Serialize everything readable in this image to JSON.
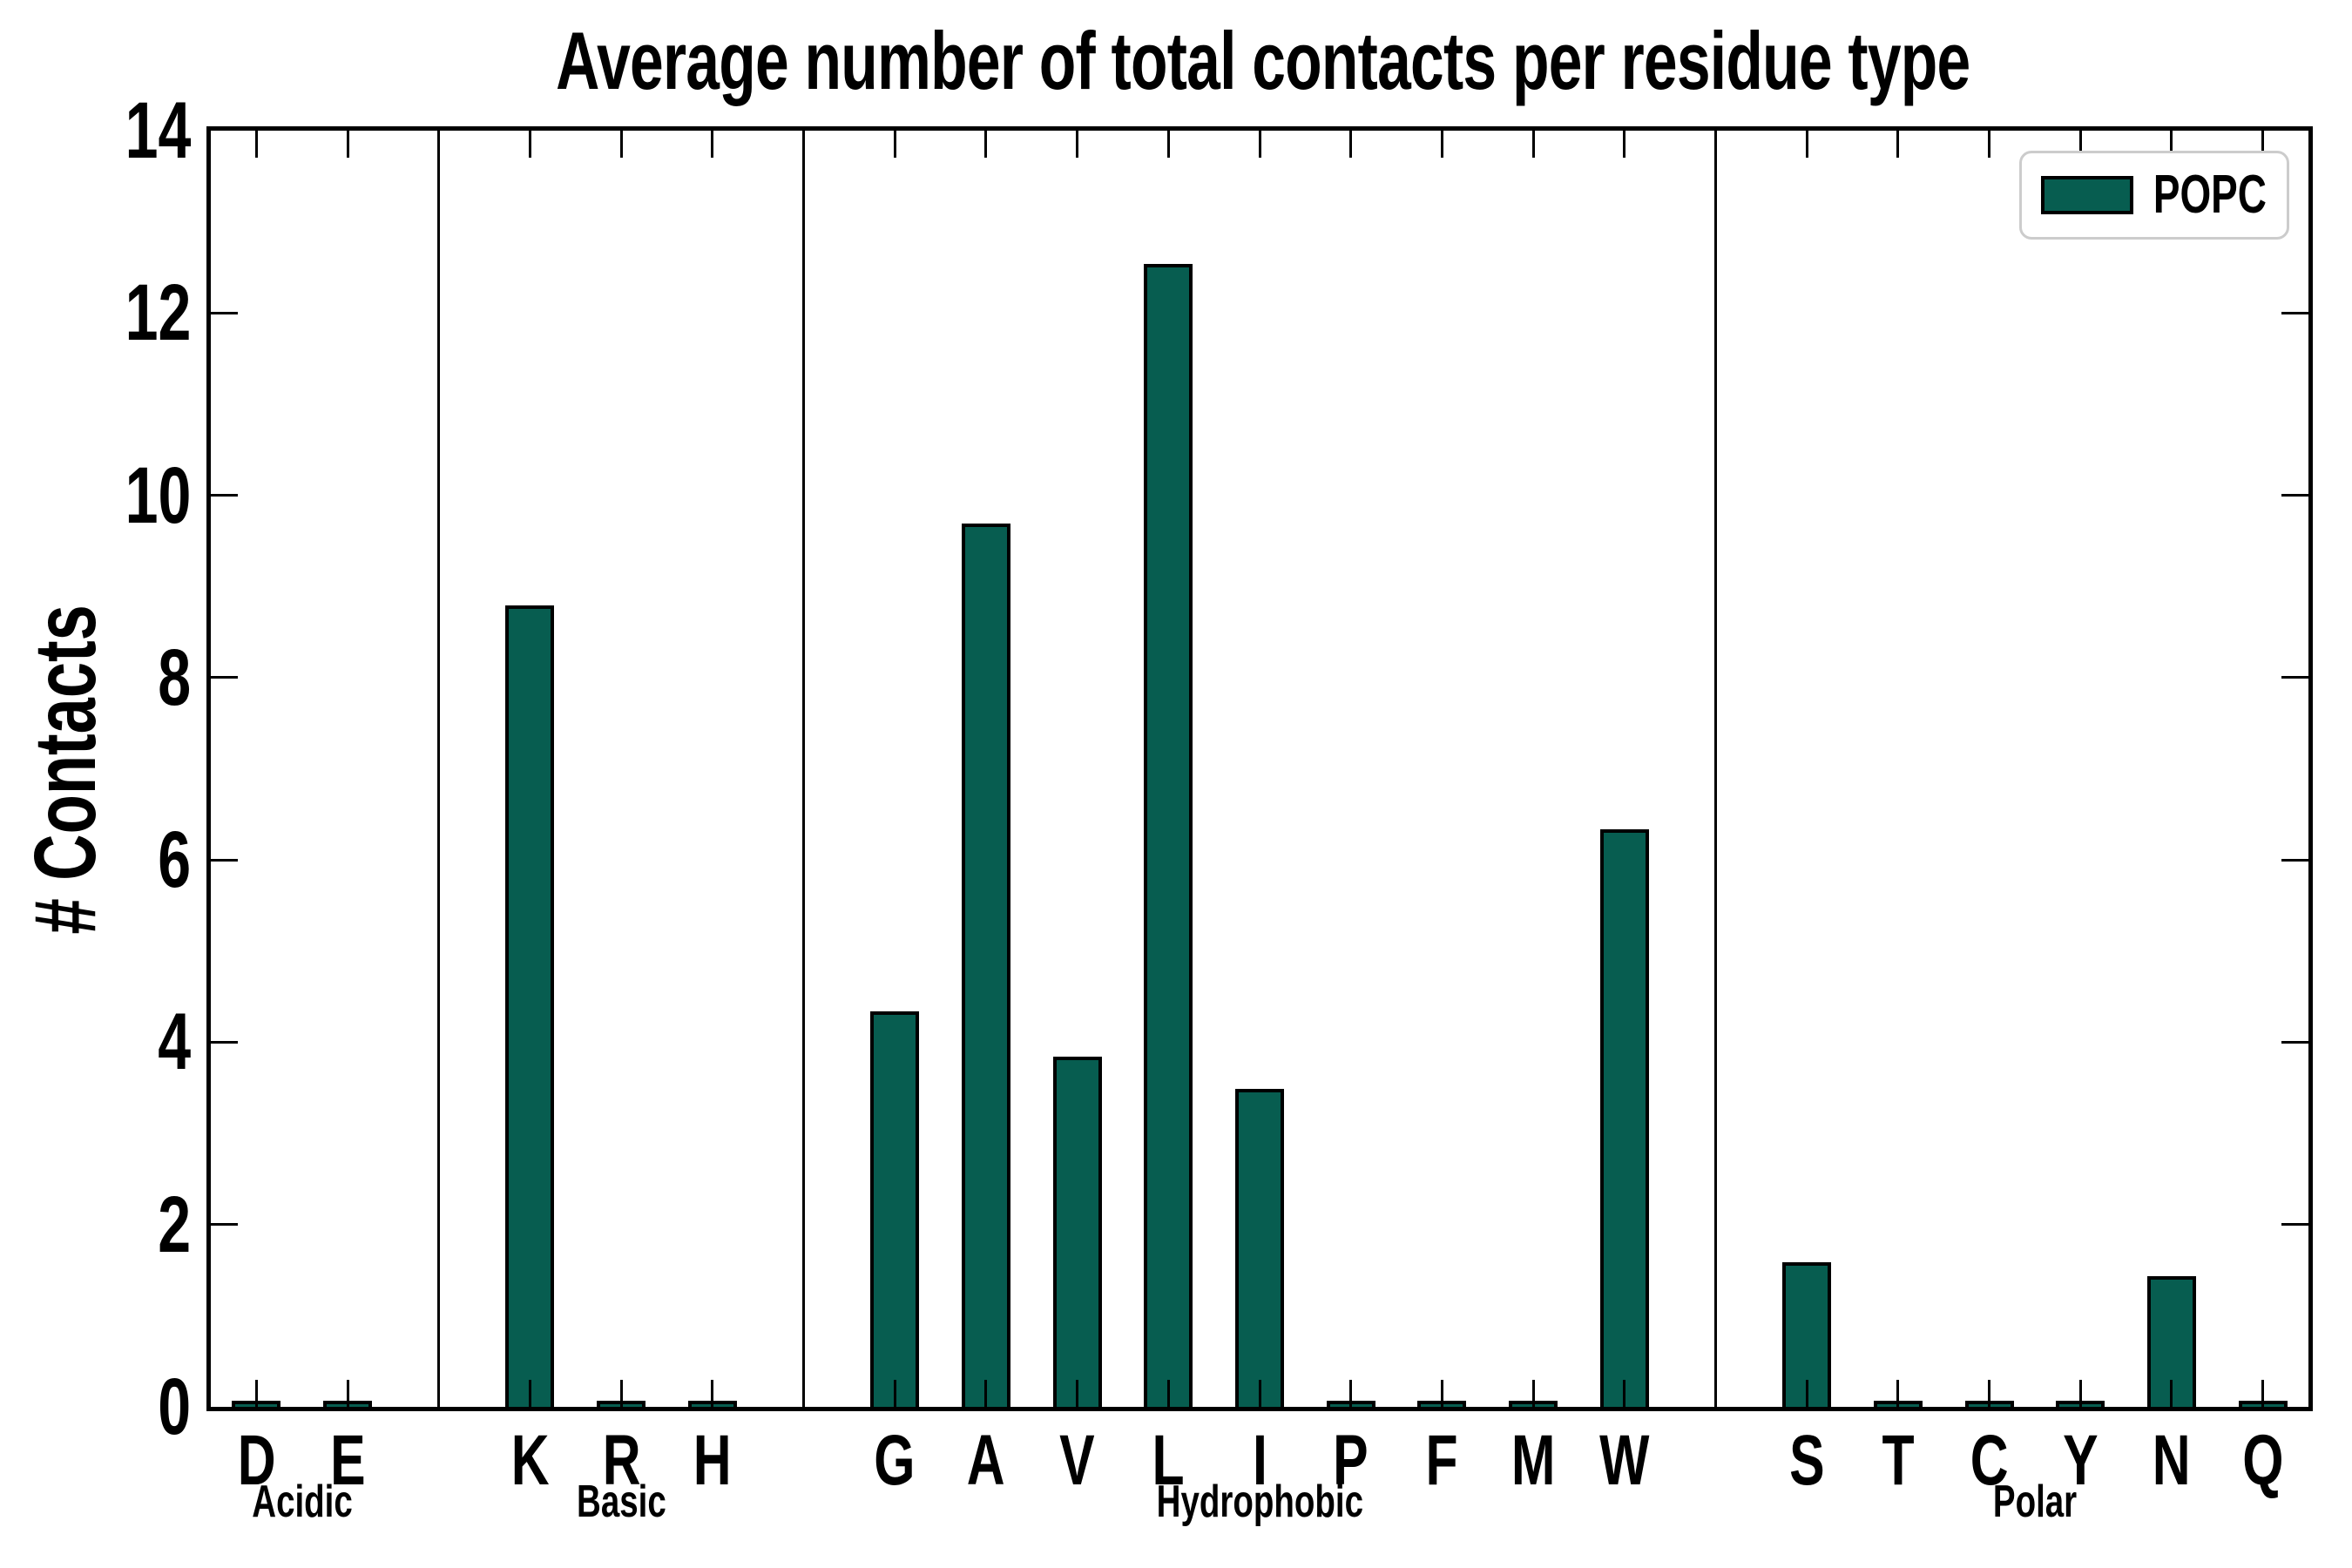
{
  "title": "Average number of total contacts per residue type",
  "y_axis_label": "# Contacts",
  "legend": {
    "label": "POPC"
  },
  "colors": {
    "bar_fill": "#075d50",
    "bar_edge": "#000000",
    "axis": "#000000",
    "legend_border": "#cccccc",
    "background": "#ffffff"
  },
  "chart_data": {
    "type": "bar",
    "title": "Average number of total contacts per residue type",
    "xlabel": "",
    "ylabel": "# Contacts",
    "ylim": [
      0,
      14
    ],
    "yticks": [
      0,
      2,
      4,
      6,
      8,
      10,
      12,
      14
    ],
    "grid": false,
    "legend_entries": [
      "POPC"
    ],
    "legend_position": "upper right",
    "bar_color": "#075d50",
    "groups": [
      {
        "label": "Acidic",
        "categories": [
          "D",
          "E"
        ],
        "values": [
          0.03,
          0.03
        ]
      },
      {
        "label": "Basic",
        "categories": [
          "K",
          "R",
          "H"
        ],
        "values": [
          8.75,
          0.03,
          0.03
        ]
      },
      {
        "label": "Hydrophobic",
        "categories": [
          "G",
          "A",
          "V",
          "L",
          "I",
          "P",
          "F",
          "M",
          "W"
        ],
        "values": [
          4.3,
          9.65,
          3.8,
          12.5,
          3.45,
          0.03,
          0.03,
          0.03,
          6.3
        ]
      },
      {
        "label": "Polar",
        "categories": [
          "S",
          "T",
          "C",
          "Y",
          "N",
          "Q"
        ],
        "values": [
          1.55,
          0.03,
          0.03,
          0.03,
          1.4,
          0.03
        ]
      }
    ]
  }
}
